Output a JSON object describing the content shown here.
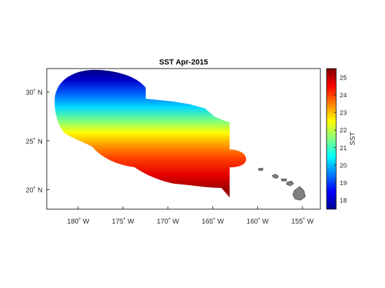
{
  "chart_data": {
    "type": "heatmap",
    "title": "SST Apr-2015",
    "colorbar": {
      "label": "SST",
      "range": [
        17.5,
        25.5
      ],
      "ticks": [
        "18",
        "19",
        "20",
        "21",
        "22",
        "23",
        "24",
        "25"
      ]
    },
    "lon_ticks": [
      "180˚ W",
      "175˚ W",
      "170˚ W",
      "165˚ W",
      "160˚ W",
      "155˚ W"
    ],
    "lat_ticks": [
      "30˚ N",
      "25˚ N",
      "20˚ N"
    ],
    "lon_range": [
      -183.5,
      -153.0
    ],
    "lat_range": [
      18.0,
      32.4
    ],
    "sst_gradient": {
      "lat_north": 31.5,
      "lat_south": 20.0,
      "sst_north": 17.6,
      "sst_south": 25.3
    },
    "islands": "Hawaiian Islands (grey landmass)",
    "colors": {
      "land": "#808080",
      "land_edge": "#333333"
    }
  }
}
